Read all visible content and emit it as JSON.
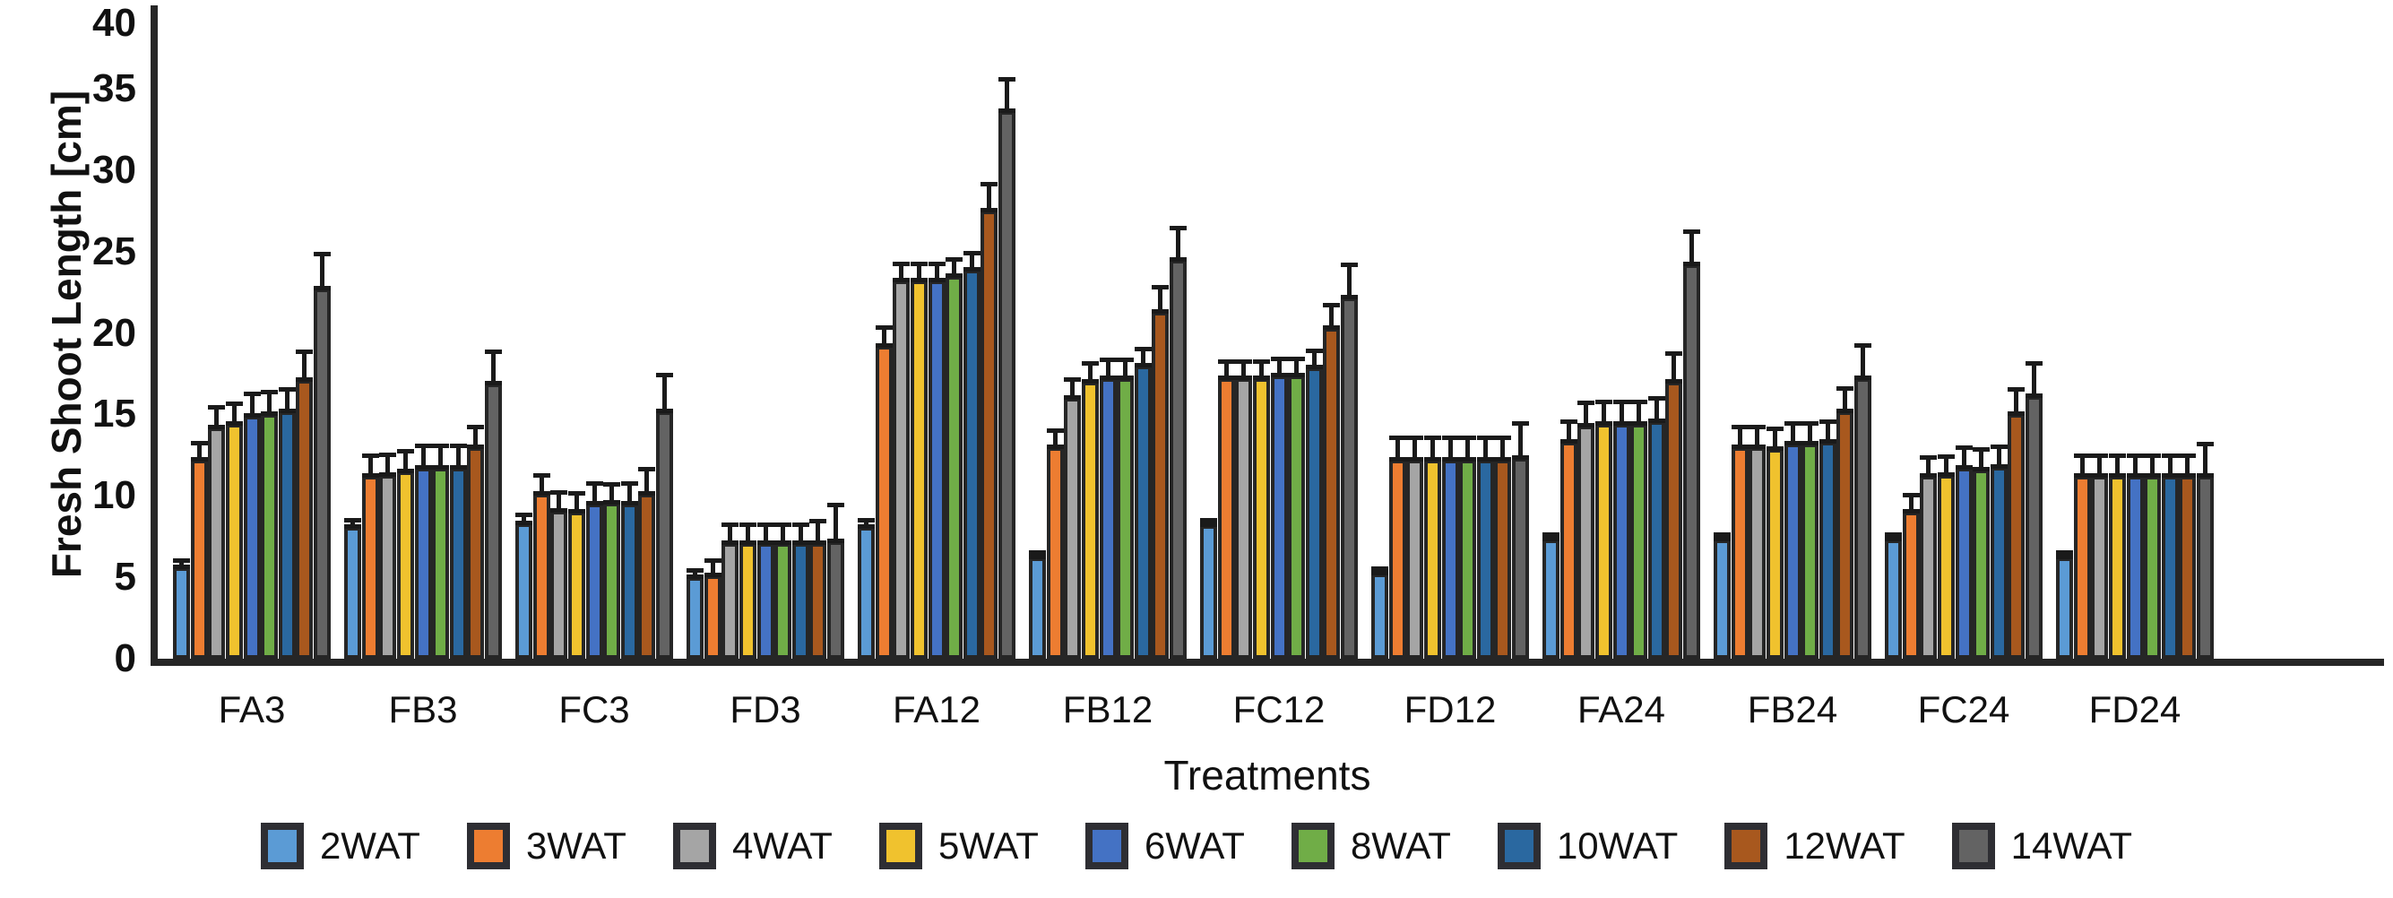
{
  "figure": {
    "y_axis_title": "Fresh Shoot Length [cm]",
    "x_axis_title": "Treatments"
  },
  "chart_data": {
    "type": "bar",
    "title": "",
    "xlabel": "Treatments",
    "ylabel": "Fresh Shoot Length [cm]",
    "ylim": [
      0,
      40
    ],
    "yticks": [
      0,
      5,
      10,
      15,
      20,
      25,
      30,
      35,
      40
    ],
    "grid": false,
    "legend_position": "bottom",
    "error_bars": "upper, black caps",
    "bar_outline_color": "#262626",
    "categories": [
      "FA3",
      "FB3",
      "FC3",
      "FD3",
      "FA12",
      "FB12",
      "FC12",
      "FD12",
      "FA24",
      "FB24",
      "FC24",
      "FD24"
    ],
    "series": [
      {
        "name": "2WAT",
        "color": "#5B9BD5",
        "values": [
          5.6,
          8.1,
          8.3,
          5.0,
          8.1,
          6.2,
          8.2,
          5.2,
          7.3,
          7.3,
          7.3,
          6.2
        ],
        "errors": [
          0.4,
          0.4,
          0.5,
          0.4,
          0.4,
          0.3,
          0.3,
          0.3,
          0.3,
          0.3,
          0.3,
          0.3
        ]
      },
      {
        "name": "3WAT",
        "color": "#ED7D31",
        "values": [
          12.2,
          11.2,
          10.1,
          5.1,
          19.2,
          13.0,
          17.2,
          12.2,
          13.3,
          13.0,
          9.0,
          11.2
        ],
        "errors": [
          1.0,
          1.2,
          1.1,
          0.9,
          1.1,
          1.0,
          1.0,
          1.3,
          1.2,
          1.2,
          1.0,
          1.2
        ]
      },
      {
        "name": "4WAT",
        "color": "#A5A5A5",
        "values": [
          14.2,
          11.3,
          9.1,
          7.1,
          23.2,
          16.0,
          17.2,
          12.2,
          14.3,
          13.0,
          11.2,
          11.2
        ],
        "errors": [
          1.2,
          1.2,
          1.1,
          1.1,
          1.0,
          1.1,
          1.0,
          1.3,
          1.4,
          1.2,
          1.1,
          1.2
        ]
      },
      {
        "name": "5WAT",
        "color": "#F0C22E",
        "values": [
          14.4,
          11.5,
          9.0,
          7.1,
          23.2,
          17.0,
          17.2,
          12.2,
          14.4,
          12.9,
          11.3,
          11.2
        ],
        "errors": [
          1.2,
          1.2,
          1.1,
          1.1,
          1.0,
          1.1,
          1.0,
          1.3,
          1.3,
          1.2,
          1.1,
          1.2
        ]
      },
      {
        "name": "6WAT",
        "color": "#4472C4",
        "values": [
          14.9,
          11.7,
          9.5,
          7.1,
          23.2,
          17.2,
          17.4,
          12.2,
          14.4,
          13.2,
          11.7,
          11.2
        ],
        "errors": [
          1.3,
          1.3,
          1.2,
          1.1,
          1.0,
          1.1,
          1.0,
          1.3,
          1.3,
          1.2,
          1.2,
          1.2
        ]
      },
      {
        "name": "8WAT",
        "color": "#70AD47",
        "values": [
          15.0,
          11.7,
          9.6,
          7.1,
          23.5,
          17.2,
          17.4,
          12.2,
          14.4,
          13.2,
          11.6,
          11.2
        ],
        "errors": [
          1.3,
          1.3,
          1.1,
          1.1,
          1.0,
          1.1,
          1.0,
          1.3,
          1.3,
          1.2,
          1.2,
          1.2
        ]
      },
      {
        "name": "10WAT",
        "color": "#2A68A0",
        "values": [
          15.2,
          11.7,
          9.5,
          7.1,
          23.9,
          18.0,
          17.9,
          12.2,
          14.6,
          13.3,
          11.8,
          11.2
        ],
        "errors": [
          1.3,
          1.3,
          1.2,
          1.1,
          1.0,
          1.0,
          1.0,
          1.3,
          1.4,
          1.2,
          1.2,
          1.2
        ]
      },
      {
        "name": "12WAT",
        "color": "#A8581E",
        "values": [
          17.1,
          13.0,
          10.1,
          7.1,
          27.5,
          21.3,
          20.3,
          12.2,
          17.0,
          15.2,
          15.0,
          11.2
        ],
        "errors": [
          1.7,
          1.2,
          1.5,
          1.3,
          1.6,
          1.5,
          1.4,
          1.3,
          1.7,
          1.4,
          1.5,
          1.2
        ]
      },
      {
        "name": "14WAT",
        "color": "#636363",
        "values": [
          22.7,
          16.9,
          15.2,
          7.2,
          33.6,
          24.5,
          22.2,
          12.3,
          24.2,
          17.2,
          16.1,
          11.2
        ],
        "errors": [
          2.1,
          1.9,
          2.2,
          2.2,
          1.9,
          1.9,
          2.0,
          2.1,
          2.0,
          2.0,
          2.0,
          1.9
        ]
      }
    ]
  }
}
